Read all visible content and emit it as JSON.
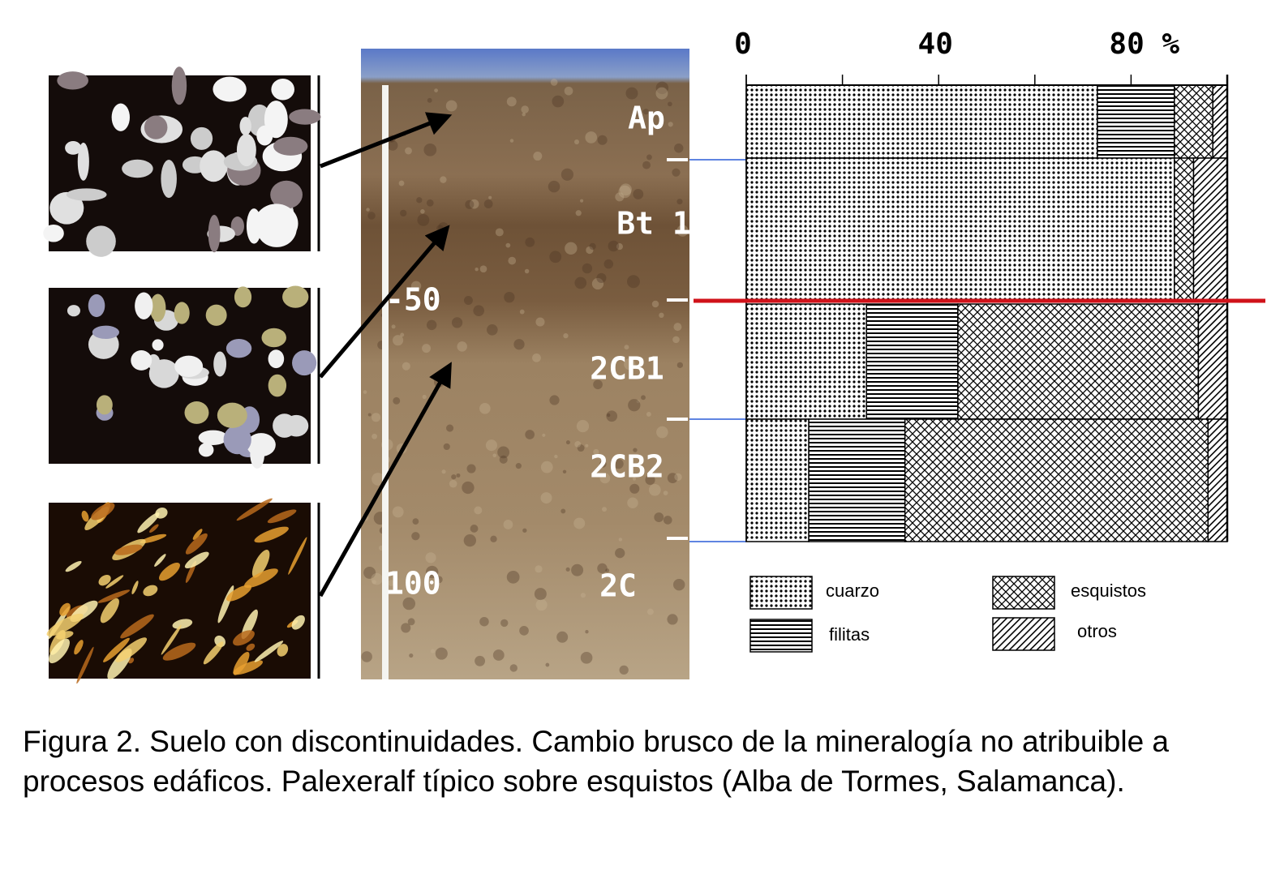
{
  "chart_data": {
    "type": "stacked-bar-horizontal",
    "categories": [
      "Ap",
      "Bt 1",
      "2CB1",
      "2CB2"
    ],
    "series": [
      {
        "name": "cuarzo",
        "color": "#000000",
        "pattern": "dots",
        "values": [
          73,
          89,
          25,
          13
        ]
      },
      {
        "name": "filitas",
        "color": "#000000",
        "pattern": "hlines",
        "values": [
          16,
          0,
          19,
          20
        ]
      },
      {
        "name": "esquistos",
        "color": "#000000",
        "pattern": "crosshatch",
        "values": [
          8,
          4,
          50,
          63
        ]
      },
      {
        "name": "otros",
        "color": "#000000",
        "pattern": "diagonal",
        "values": [
          3,
          7,
          6,
          4
        ]
      }
    ],
    "xlim": [
      0,
      100
    ],
    "xticks": [
      0,
      40,
      {
        "value": 80,
        "label": "80 %"
      }
    ],
    "minor_xticks": [
      20,
      60,
      100
    ]
  },
  "profile": {
    "extra_horizon": "2C",
    "depth_labels": [
      "-50",
      "100"
    ]
  },
  "caption": "Figura 2. Suelo con discontinuidades. Cambio brusco de la mineralogía no atribuible a procesos edáficos. Palexeralf típico sobre esquistos (Alba de Tormes, Salamanca)."
}
